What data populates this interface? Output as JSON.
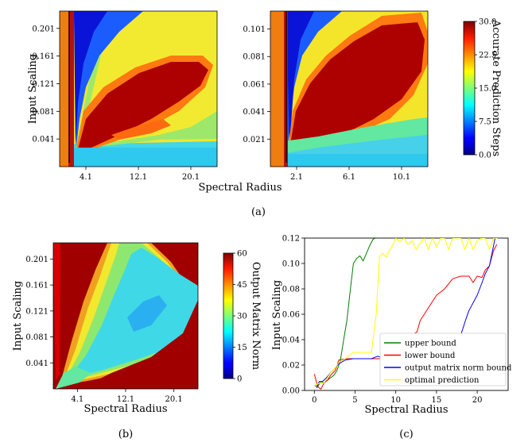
{
  "chart_data": [
    {
      "panel": "a-left",
      "type": "heatmap",
      "xlabel": "Spectral Radius",
      "ylabel": "Input Scaling",
      "xticks": [
        "4.1",
        "12.1",
        "20.1"
      ],
      "yticks": [
        "0.201",
        "0.161",
        "0.121",
        "0.081",
        "0.041"
      ],
      "xlim": [
        0.1,
        24.1
      ],
      "ylim": [
        0.001,
        0.226
      ],
      "colormap": "jet",
      "vmin": 0,
      "vmax": 30
    },
    {
      "panel": "a-right",
      "type": "heatmap",
      "xlabel": "Spectral Radius",
      "xticks": [
        "2.1",
        "6.1",
        "10.1"
      ],
      "yticks": [
        "0.101",
        "0.081",
        "0.061",
        "0.041",
        "0.021"
      ],
      "xlim": [
        0.1,
        12.1
      ],
      "ylim": [
        0.001,
        0.114
      ],
      "colormap": "jet",
      "vmin": 0,
      "vmax": 30
    },
    {
      "panel": "a-colorbar",
      "type": "colorbar",
      "label": "Accurate Prediction Steps",
      "ticks": [
        "0.0",
        "7.5",
        "15.0",
        "22.5",
        "30.0"
      ],
      "vmin": 0,
      "vmax": 30
    },
    {
      "panel": "b",
      "type": "heatmap",
      "xlabel": "Spectral Radius",
      "ylabel": "Input Scaling",
      "xticks": [
        "4.1",
        "12.1",
        "20.1"
      ],
      "yticks": [
        "0.201",
        "0.161",
        "0.121",
        "0.081",
        "0.041"
      ],
      "xlim": [
        0.1,
        24.1
      ],
      "ylim": [
        0.001,
        0.226
      ],
      "colormap": "jet",
      "vmin": 0,
      "vmax": 60
    },
    {
      "panel": "b-colorbar",
      "type": "colorbar",
      "label": "Output Matrix Norm",
      "ticks": [
        "0",
        "15",
        "30",
        "45",
        "60"
      ],
      "vmin": 0,
      "vmax": 60
    },
    {
      "panel": "c",
      "type": "line",
      "xlabel": "Spectral Radius",
      "ylabel": "Input Scaling",
      "xticks": [
        "0",
        "5",
        "10",
        "15",
        "20"
      ],
      "yticks": [
        "0.00",
        "0.02",
        "0.04",
        "0.06",
        "0.08",
        "0.10",
        "0.12"
      ],
      "xlim": [
        -1.2,
        23.8
      ],
      "ylim": [
        0,
        0.12
      ],
      "legend_position": "lower-right",
      "series": [
        {
          "name": "upper bound",
          "color": "#008000",
          "x": [
            0,
            0.4,
            0.8,
            1.2,
            1.6,
            2,
            2.4,
            2.8,
            3.2,
            3.6,
            4,
            4.4,
            4.8,
            5.2,
            5.6,
            6,
            6.4,
            6.8,
            7.2,
            7.5
          ],
          "y": [
            0.004,
            0.003,
            0.007,
            0.006,
            0.008,
            0.01,
            0.012,
            0.016,
            0.024,
            0.04,
            0.055,
            0.078,
            0.1,
            0.104,
            0.106,
            0.102,
            0.108,
            0.114,
            0.119,
            0.12
          ]
        },
        {
          "name": "lower bound",
          "color": "#ff0000",
          "x": [
            0,
            0.4,
            0.8,
            1.2,
            1.6,
            2,
            2.6,
            3,
            4,
            5,
            6,
            7,
            8,
            9,
            10,
            11,
            12,
            12.6,
            13,
            14,
            15,
            16,
            17,
            18,
            19,
            19.5,
            20,
            20.6,
            21,
            21.5,
            22,
            22.4
          ],
          "y": [
            0.013,
            0.003,
            0.001,
            0.006,
            0.008,
            0.012,
            0.016,
            0.024,
            0.025,
            0.025,
            0.025,
            0.025,
            0.025,
            0.025,
            0.025,
            0.025,
            0.044,
            0.046,
            0.055,
            0.065,
            0.075,
            0.08,
            0.088,
            0.09,
            0.09,
            0.085,
            0.09,
            0.089,
            0.095,
            0.098,
            0.11,
            0.115
          ]
        },
        {
          "name": "output matrix norm bound",
          "color": "#0000ff",
          "x": [
            0.3,
            0.6,
            1,
            1.5,
            2,
            2.6,
            3,
            3.8,
            4.8,
            6,
            7,
            7.8,
            8.5,
            9.5,
            10.6,
            11.5,
            12.5,
            13,
            13.5,
            14,
            14.5,
            15,
            15.5,
            16,
            16.5,
            17,
            18,
            18.6,
            19,
            20,
            20.6,
            21,
            21.5,
            22.2
          ],
          "y": [
            0.002,
            0.007,
            0.007,
            0.01,
            0.014,
            0.018,
            0.021,
            0.024,
            0.025,
            0.025,
            0.025,
            0.027,
            0.025,
            0.025,
            0.025,
            0.025,
            0.025,
            0.028,
            0.025,
            0.03,
            0.027,
            0.033,
            0.031,
            0.035,
            0.033,
            0.036,
            0.044,
            0.056,
            0.063,
            0.075,
            0.085,
            0.092,
            0.098,
            0.12
          ]
        },
        {
          "name": "optimal prediction",
          "color": "#ffff00",
          "x": [
            0,
            0.4,
            0.8,
            1.2,
            1.6,
            2,
            2.6,
            3,
            3.8,
            4.8,
            6,
            7,
            7.6,
            8,
            8.4,
            8.8,
            9.2,
            9.6,
            10,
            10.5,
            11,
            11.5,
            12,
            12.5,
            13,
            13.5,
            14,
            14.5,
            15,
            15.5,
            16,
            16.5,
            17,
            17.5,
            18,
            18.5,
            19,
            19.5,
            20,
            20.5,
            21,
            21.5,
            22,
            22.5
          ],
          "y": [
            0.004,
            0.005,
            0.006,
            0.006,
            0.01,
            0.014,
            0.018,
            0.022,
            0.025,
            0.03,
            0.03,
            0.03,
            0.06,
            0.105,
            0.108,
            0.105,
            0.11,
            0.114,
            0.12,
            0.117,
            0.12,
            0.115,
            0.118,
            0.111,
            0.116,
            0.12,
            0.111,
            0.12,
            0.113,
            0.12,
            0.12,
            0.111,
            0.12,
            0.12,
            0.12,
            0.111,
            0.12,
            0.111,
            0.118,
            0.12,
            0.12,
            0.111,
            0.12,
            0.12
          ]
        }
      ]
    }
  ],
  "captions": {
    "a": "(a)",
    "b": "(b)",
    "c": "(c)"
  }
}
